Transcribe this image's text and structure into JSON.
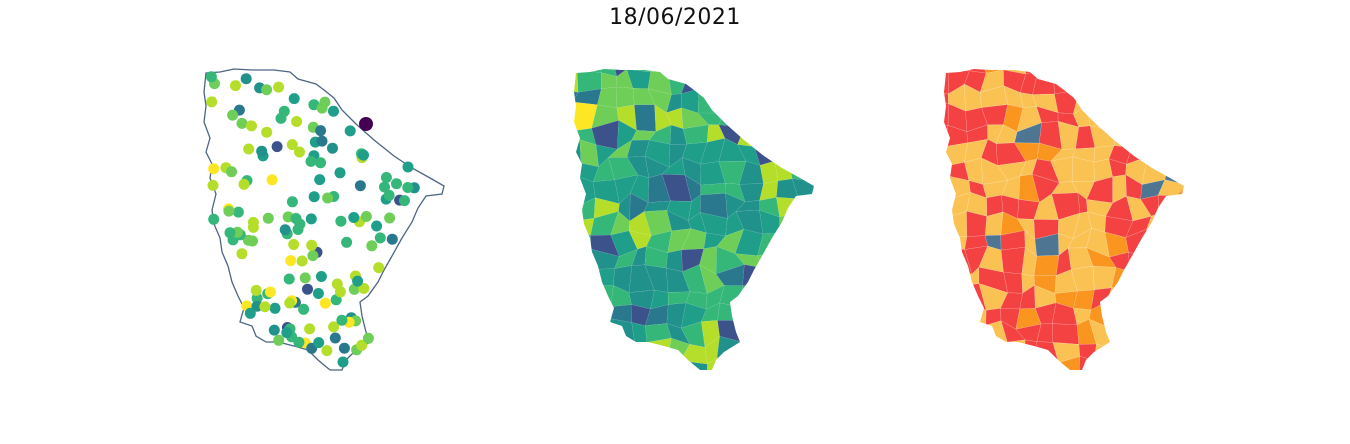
{
  "title": "18/06/2021",
  "colors": {
    "outline": "#4c6583",
    "viridis": [
      "#440154",
      "#3b528b",
      "#21918c",
      "#2a788e",
      "#1f9e89",
      "#35b779",
      "#6ece58",
      "#b5de2b",
      "#fde725"
    ],
    "categories": [
      "#f44141",
      "#fac252",
      "#fa9620",
      "#4e7592"
    ]
  },
  "panels": [
    {
      "name": "station-points-map",
      "type": "points-on-outline"
    },
    {
      "name": "municipality-choropleth-map",
      "type": "continuous-choropleth"
    },
    {
      "name": "municipality-category-map",
      "type": "categorical-choropleth"
    }
  ]
}
